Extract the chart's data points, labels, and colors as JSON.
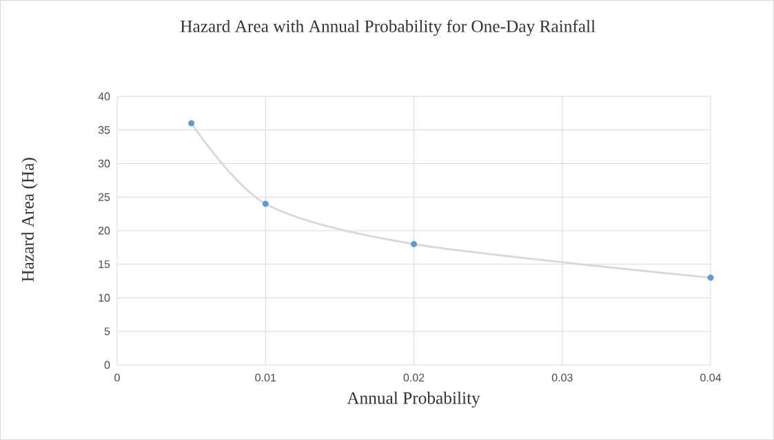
{
  "chart_data": {
    "type": "line",
    "title": "Hazard Area with Annual Probability for One-Day Rainfall",
    "xlabel": "Annual Probability",
    "ylabel": "Hazard Area (Ha)",
    "x": [
      0.005,
      0.01,
      0.02,
      0.04
    ],
    "series": [
      {
        "type": "line",
        "color": "#d9d9d9",
        "marker": "none",
        "values": [
          36,
          24,
          18,
          13
        ]
      },
      {
        "type": "scatter",
        "color": "#5b9bd5",
        "marker": "circle",
        "values": [
          36,
          24,
          18,
          13
        ]
      }
    ],
    "xlim": [
      0,
      0.04
    ],
    "xticks": [
      0,
      0.01,
      0.02,
      0.03,
      0.04
    ],
    "ylim": [
      0,
      40
    ],
    "yticks": [
      0,
      5,
      10,
      15,
      20,
      25,
      30,
      35,
      40
    ],
    "grid": true
  }
}
